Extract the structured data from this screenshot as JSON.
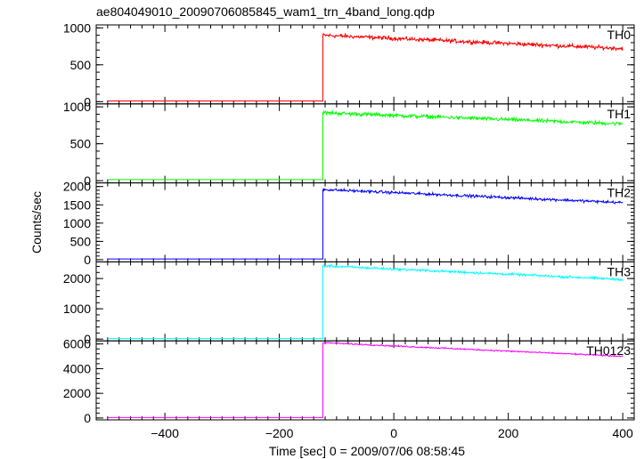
{
  "chart_data": {
    "type": "line",
    "title": "ae804049010_20090706085845_wam1_trn_4band_long.qdp",
    "xlabel": "Time [sec] 0 = 2009/07/06 08:58:45",
    "ylabel": "Counts/sec",
    "xlim": [
      -520,
      420
    ],
    "x_ticks": [
      -400,
      -200,
      0,
      200,
      400
    ],
    "x_tick_labels": [
      "−400",
      "−200",
      "0",
      "200",
      "400"
    ],
    "x_data_range": [
      -500,
      400
    ],
    "step_time": -124,
    "panels": [
      {
        "name": "TH0",
        "color": "#ff0000",
        "ylim": [
          -30,
          1040
        ],
        "yticks": [
          0,
          500,
          1000
        ],
        "ytick_labels": [
          "0",
          "500",
          "1000"
        ],
        "pre_level": 10,
        "post_start": 900,
        "post_end": 720,
        "noise": 40,
        "x": [
          -500,
          -124,
          -124,
          -100,
          0,
          100,
          200,
          300,
          400
        ],
        "y": [
          10,
          10,
          900,
          880,
          840,
          810,
          790,
          760,
          720
        ]
      },
      {
        "name": "TH1",
        "color": "#00ff00",
        "ylim": [
          -30,
          1040
        ],
        "yticks": [
          0,
          500,
          1000
        ],
        "ytick_labels": [
          "0",
          "500",
          "1000"
        ],
        "pre_level": 15,
        "post_start": 920,
        "post_end": 770,
        "noise": 38,
        "x": [
          -500,
          -124,
          -124,
          -100,
          0,
          100,
          200,
          300,
          400
        ],
        "y": [
          15,
          15,
          920,
          900,
          870,
          840,
          820,
          795,
          770
        ]
      },
      {
        "name": "TH2",
        "color": "#0000ff",
        "ylim": [
          -60,
          2100
        ],
        "yticks": [
          0,
          500,
          1000,
          1500,
          2000
        ],
        "ytick_labels": [
          "0",
          "500",
          "1000",
          "1500",
          "2000"
        ],
        "pre_level": 20,
        "post_start": 1920,
        "post_end": 1560,
        "noise": 55,
        "x": [
          -500,
          -124,
          -124,
          -100,
          0,
          100,
          200,
          300,
          400
        ],
        "y": [
          20,
          20,
          1920,
          1890,
          1820,
          1740,
          1680,
          1620,
          1560
        ]
      },
      {
        "name": "TH3",
        "color": "#00ffff",
        "ylim": [
          -60,
          2550
        ],
        "yticks": [
          0,
          1000,
          2000
        ],
        "ytick_labels": [
          "0",
          "1000",
          "2000"
        ],
        "pre_level": 15,
        "post_start": 2420,
        "post_end": 1970,
        "noise": 60,
        "x": [
          -500,
          -124,
          -124,
          -100,
          0,
          100,
          200,
          300,
          400
        ],
        "y": [
          15,
          15,
          2420,
          2390,
          2300,
          2200,
          2120,
          2040,
          1970
        ]
      },
      {
        "name": "TH0123",
        "color": "#ff00ff",
        "ylim": [
          -150,
          6250
        ],
        "yticks": [
          0,
          2000,
          4000,
          6000
        ],
        "ytick_labels": [
          "0",
          "2000",
          "4000",
          "6000"
        ],
        "pre_level": 40,
        "post_start": 6100,
        "post_end": 5000,
        "noise": 80,
        "x": [
          -500,
          -124,
          -124,
          -100,
          0,
          100,
          200,
          300,
          400
        ],
        "y": [
          40,
          40,
          6100,
          6050,
          5850,
          5600,
          5400,
          5200,
          5000
        ]
      }
    ],
    "grid": false,
    "legend": "none"
  }
}
